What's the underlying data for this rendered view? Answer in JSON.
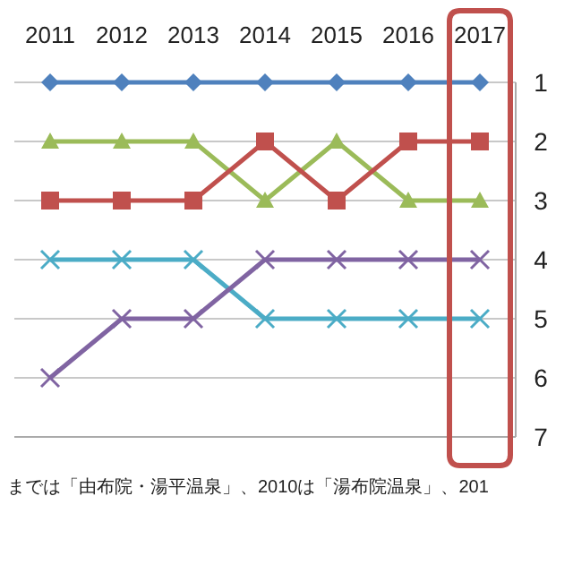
{
  "chart_data": {
    "type": "line",
    "categories": [
      "2011",
      "2012",
      "2013",
      "2014",
      "2015",
      "2016",
      "2017"
    ],
    "series": [
      {
        "color": "#4f81bd",
        "marker": "diamond",
        "values": [
          1,
          1,
          1,
          1,
          1,
          1,
          1
        ]
      },
      {
        "color": "#9bbb59",
        "marker": "triangle",
        "values": [
          2,
          2,
          2,
          3,
          2,
          3,
          3
        ]
      },
      {
        "color": "#c0504d",
        "marker": "square",
        "values": [
          3,
          3,
          3,
          2,
          3,
          2,
          2
        ]
      },
      {
        "color": "#4bacc6",
        "marker": "cross",
        "values": [
          4,
          4,
          4,
          5,
          5,
          5,
          5
        ]
      },
      {
        "color": "#8064a2",
        "marker": "cross",
        "values": [
          6,
          5,
          5,
          4,
          4,
          4,
          4
        ]
      }
    ],
    "ylim": [
      7,
      1
    ],
    "yticks": [
      1,
      2,
      3,
      4,
      5,
      6,
      7
    ],
    "grid": "y",
    "annotations": [
      "までは「由布院・湯平温泉」、2010は「湯布院温泉」、201"
    ]
  }
}
